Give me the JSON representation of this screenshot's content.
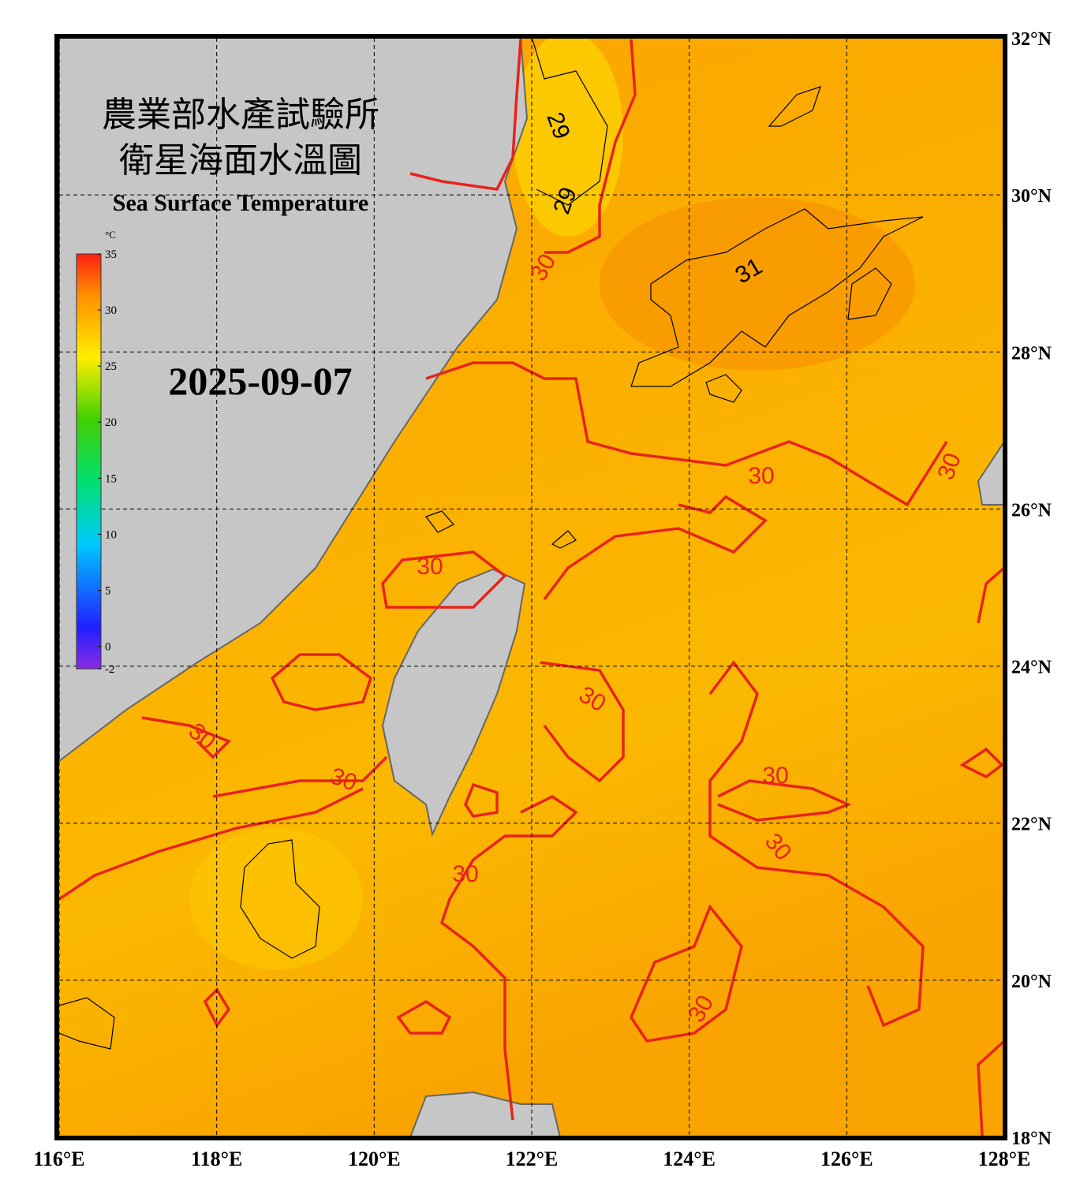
{
  "header": {
    "title_lines": [
      "農業部水產試驗所",
      "衛星海面水溫圖"
    ],
    "subtitle": "Sea Surface Temperature",
    "date": "2025-09-07"
  },
  "colorbar": {
    "unit": "°C",
    "ticks": [
      35,
      30,
      25,
      20,
      15,
      10,
      5,
      0,
      -2
    ],
    "range": [
      -2,
      35
    ]
  },
  "map": {
    "lon_range": [
      116,
      128
    ],
    "lat_range": [
      18,
      32
    ],
    "longitudes": [
      {
        "value": 116,
        "label": "116°E"
      },
      {
        "value": 118,
        "label": "118°E"
      },
      {
        "value": 120,
        "label": "120°E"
      },
      {
        "value": 122,
        "label": "122°E"
      },
      {
        "value": 124,
        "label": "124°E"
      },
      {
        "value": 126,
        "label": "126°E"
      },
      {
        "value": 128,
        "label": "128°E"
      }
    ],
    "latitudes": [
      {
        "value": 32,
        "label": "32°N"
      },
      {
        "value": 30,
        "label": "30°N"
      },
      {
        "value": 28,
        "label": "28°N"
      },
      {
        "value": 26,
        "label": "26°N"
      },
      {
        "value": 24,
        "label": "24°N"
      },
      {
        "value": 22,
        "label": "22°N"
      },
      {
        "value": 20,
        "label": "20°N"
      },
      {
        "value": 18,
        "label": "18°N"
      }
    ],
    "contour_labels": [
      "29",
      "29",
      "30",
      "31",
      "30",
      "30",
      "30",
      "30",
      "30",
      "30",
      "30",
      "30",
      "30",
      "30"
    ]
  }
}
